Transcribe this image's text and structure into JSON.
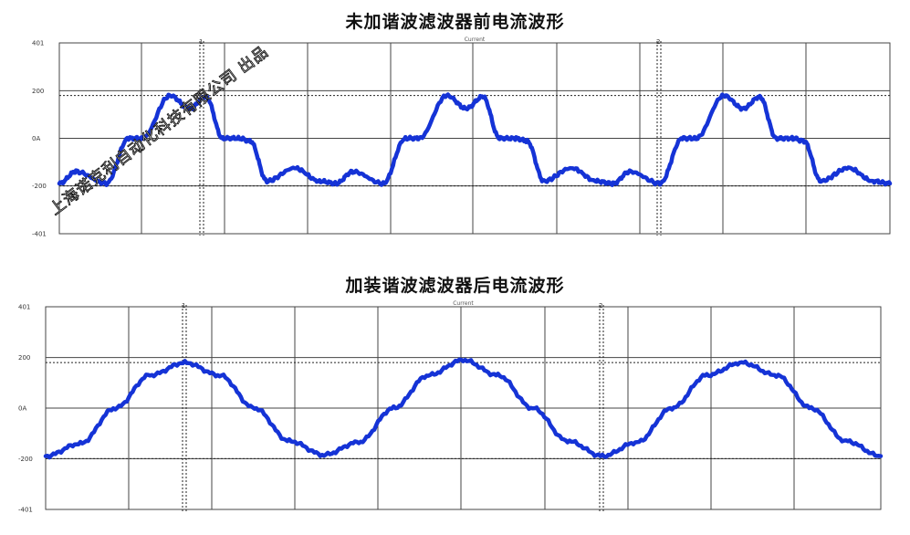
{
  "watermark": "上海诺克利自动化科技有限公司 出品",
  "chart_data": [
    {
      "type": "line",
      "title": "未加谐波滤波器前电流波形",
      "plot_title": "Current",
      "yticks": [
        "401",
        "200",
        "0A",
        "-200",
        "-401"
      ],
      "ylim": [
        -401,
        401
      ],
      "xlim": [
        0,
        3
      ],
      "cursors": [
        "1",
        "2"
      ],
      "reference_levels": [
        180,
        -200
      ],
      "grid": true,
      "series": [
        {
          "color": "#1533d6",
          "x": [
            0,
            0.06,
            0.17,
            0.25,
            0.3,
            0.4,
            0.47,
            0.53,
            0.59,
            0.65,
            0.69,
            0.75,
            0.85,
            0.94,
            1.0,
            1.06,
            1.17,
            1.25,
            1.3,
            1.4,
            1.47,
            1.53,
            1.59,
            1.65,
            1.69,
            1.75,
            1.85,
            1.94,
            2.0,
            2.06,
            2.17,
            2.25,
            2.3,
            2.4,
            2.47,
            2.53,
            2.59,
            2.65,
            2.69,
            2.75,
            2.85,
            2.94,
            3.0
          ],
          "y": [
            -190,
            -140,
            -190,
            0,
            0,
            180,
            125,
            175,
            0,
            0,
            -12,
            -180,
            -125,
            -180,
            -190,
            -140,
            -190,
            0,
            0,
            180,
            125,
            175,
            0,
            0,
            -12,
            -180,
            -125,
            -180,
            -190,
            -140,
            -190,
            0,
            0,
            180,
            125,
            175,
            0,
            0,
            -12,
            -180,
            -125,
            -180,
            -190
          ]
        }
      ]
    },
    {
      "type": "line",
      "title": "加装谐波滤波器后电流波形",
      "plot_title": "Current",
      "yticks": [
        "401",
        "200",
        "0A",
        "-200",
        "-401"
      ],
      "ylim": [
        -401,
        401
      ],
      "xlim": [
        0,
        3
      ],
      "cursors": [
        "1",
        "2"
      ],
      "reference_levels": [
        180,
        -200
      ],
      "grid": true,
      "series": [
        {
          "color": "#1533d6",
          "x": [
            0,
            0.125,
            0.25,
            0.375,
            0.5,
            0.625,
            0.75,
            0.875,
            1.0,
            1.125,
            1.25,
            1.375,
            1.5,
            1.625,
            1.75,
            1.875,
            2.0,
            2.125,
            2.25,
            2.375,
            2.5,
            2.625,
            2.75,
            2.875,
            3.0
          ],
          "y": [
            -190,
            -140,
            0,
            130,
            180,
            130,
            0,
            -130,
            -185,
            -135,
            0,
            130,
            190,
            130,
            0,
            -130,
            -190,
            -135,
            0,
            130,
            180,
            130,
            0,
            -130,
            -190
          ]
        }
      ]
    }
  ]
}
